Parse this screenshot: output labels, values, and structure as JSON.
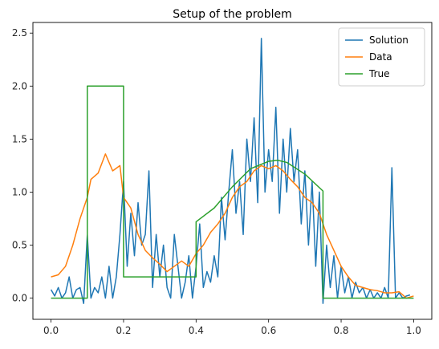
{
  "chart_data": {
    "type": "line",
    "title": "Setup of the problem",
    "xlabel": "",
    "ylabel": "",
    "xlim": [
      -0.05,
      1.05
    ],
    "ylim": [
      -0.2,
      2.6
    ],
    "grid": false,
    "legend_position": "top-right",
    "x_ticks": [
      0.0,
      0.2,
      0.4,
      0.6,
      0.8,
      1.0
    ],
    "x_tick_labels": [
      "0.0",
      "0.2",
      "0.4",
      "0.6",
      "0.8",
      "1.0"
    ],
    "y_ticks": [
      0.0,
      0.5,
      1.0,
      1.5,
      2.0,
      2.5
    ],
    "y_tick_labels": [
      "0.0",
      "0.5",
      "1.0",
      "1.5",
      "2.0",
      "2.5"
    ],
    "series": [
      {
        "name": "Solution",
        "color": "#1f77b4",
        "x": [
          0.0,
          0.01,
          0.02,
          0.03,
          0.04,
          0.05,
          0.06,
          0.07,
          0.08,
          0.09,
          0.1,
          0.11,
          0.12,
          0.13,
          0.14,
          0.15,
          0.16,
          0.17,
          0.18,
          0.19,
          0.2,
          0.21,
          0.22,
          0.23,
          0.24,
          0.25,
          0.26,
          0.27,
          0.28,
          0.29,
          0.3,
          0.31,
          0.32,
          0.33,
          0.34,
          0.35,
          0.36,
          0.37,
          0.38,
          0.39,
          0.4,
          0.41,
          0.42,
          0.43,
          0.44,
          0.45,
          0.46,
          0.47,
          0.48,
          0.49,
          0.5,
          0.51,
          0.52,
          0.53,
          0.54,
          0.55,
          0.56,
          0.57,
          0.58,
          0.59,
          0.6,
          0.61,
          0.62,
          0.63,
          0.64,
          0.65,
          0.66,
          0.67,
          0.68,
          0.69,
          0.7,
          0.71,
          0.72,
          0.73,
          0.74,
          0.75,
          0.76,
          0.77,
          0.78,
          0.79,
          0.8,
          0.81,
          0.82,
          0.83,
          0.84,
          0.85,
          0.86,
          0.87,
          0.88,
          0.89,
          0.9,
          0.91,
          0.92,
          0.93,
          0.94,
          0.95,
          0.96,
          0.97,
          0.98,
          0.99
        ],
        "y": [
          0.08,
          0.02,
          0.1,
          0.0,
          0.05,
          0.2,
          0.0,
          0.08,
          0.1,
          -0.05,
          0.6,
          0.0,
          0.1,
          0.05,
          0.2,
          0.0,
          0.3,
          0.0,
          0.2,
          0.6,
          1.1,
          0.3,
          0.8,
          0.4,
          0.9,
          0.5,
          0.6,
          1.2,
          0.1,
          0.6,
          0.2,
          0.5,
          0.1,
          0.0,
          0.6,
          0.3,
          0.0,
          0.15,
          0.4,
          0.0,
          0.3,
          0.7,
          0.1,
          0.25,
          0.15,
          0.4,
          0.2,
          0.95,
          0.55,
          1.0,
          1.4,
          0.8,
          1.1,
          0.6,
          1.5,
          1.1,
          1.7,
          0.9,
          2.45,
          1.0,
          1.4,
          1.1,
          1.8,
          0.8,
          1.5,
          1.0,
          1.6,
          1.1,
          1.4,
          0.7,
          1.2,
          0.5,
          1.1,
          0.3,
          1.0,
          -0.05,
          0.5,
          0.1,
          0.4,
          0.0,
          0.3,
          0.05,
          0.2,
          0.0,
          0.15,
          0.05,
          0.1,
          0.0,
          0.08,
          0.0,
          0.05,
          0.0,
          0.1,
          0.0,
          1.23,
          0.0,
          0.05,
          0.0,
          0.02,
          0.03
        ]
      },
      {
        "name": "Data",
        "color": "#ff7f0e",
        "x": [
          0.0,
          0.02,
          0.04,
          0.06,
          0.08,
          0.1,
          0.11,
          0.13,
          0.15,
          0.17,
          0.19,
          0.2,
          0.22,
          0.24,
          0.26,
          0.28,
          0.3,
          0.32,
          0.34,
          0.36,
          0.38,
          0.4,
          0.42,
          0.44,
          0.46,
          0.48,
          0.5,
          0.52,
          0.54,
          0.56,
          0.58,
          0.6,
          0.62,
          0.64,
          0.66,
          0.68,
          0.7,
          0.72,
          0.74,
          0.76,
          0.78,
          0.8,
          0.82,
          0.84,
          0.86,
          0.88,
          0.9,
          0.92,
          0.94,
          0.96,
          0.98,
          1.0
        ],
        "y": [
          0.2,
          0.22,
          0.3,
          0.5,
          0.75,
          0.95,
          1.12,
          1.18,
          1.36,
          1.2,
          1.25,
          0.95,
          0.85,
          0.6,
          0.45,
          0.38,
          0.32,
          0.25,
          0.3,
          0.35,
          0.3,
          0.42,
          0.5,
          0.62,
          0.7,
          0.8,
          0.95,
          1.05,
          1.1,
          1.2,
          1.25,
          1.22,
          1.25,
          1.2,
          1.12,
          1.05,
          0.95,
          0.9,
          0.8,
          0.6,
          0.45,
          0.3,
          0.2,
          0.12,
          0.1,
          0.08,
          0.07,
          0.05,
          0.05,
          0.06,
          0.0,
          0.02
        ]
      },
      {
        "name": "True",
        "color": "#2ca02c",
        "x": [
          0.0,
          0.1,
          0.1,
          0.2,
          0.2,
          0.4,
          0.4,
          0.45,
          0.5,
          0.55,
          0.6,
          0.625,
          0.65,
          0.7,
          0.75,
          0.75,
          1.0
        ],
        "y": [
          0.0,
          0.0,
          2.0,
          2.0,
          0.2,
          0.2,
          0.72,
          0.85,
          1.05,
          1.22,
          1.29,
          1.3,
          1.28,
          1.17,
          1.01,
          0.0,
          0.0
        ]
      }
    ]
  }
}
